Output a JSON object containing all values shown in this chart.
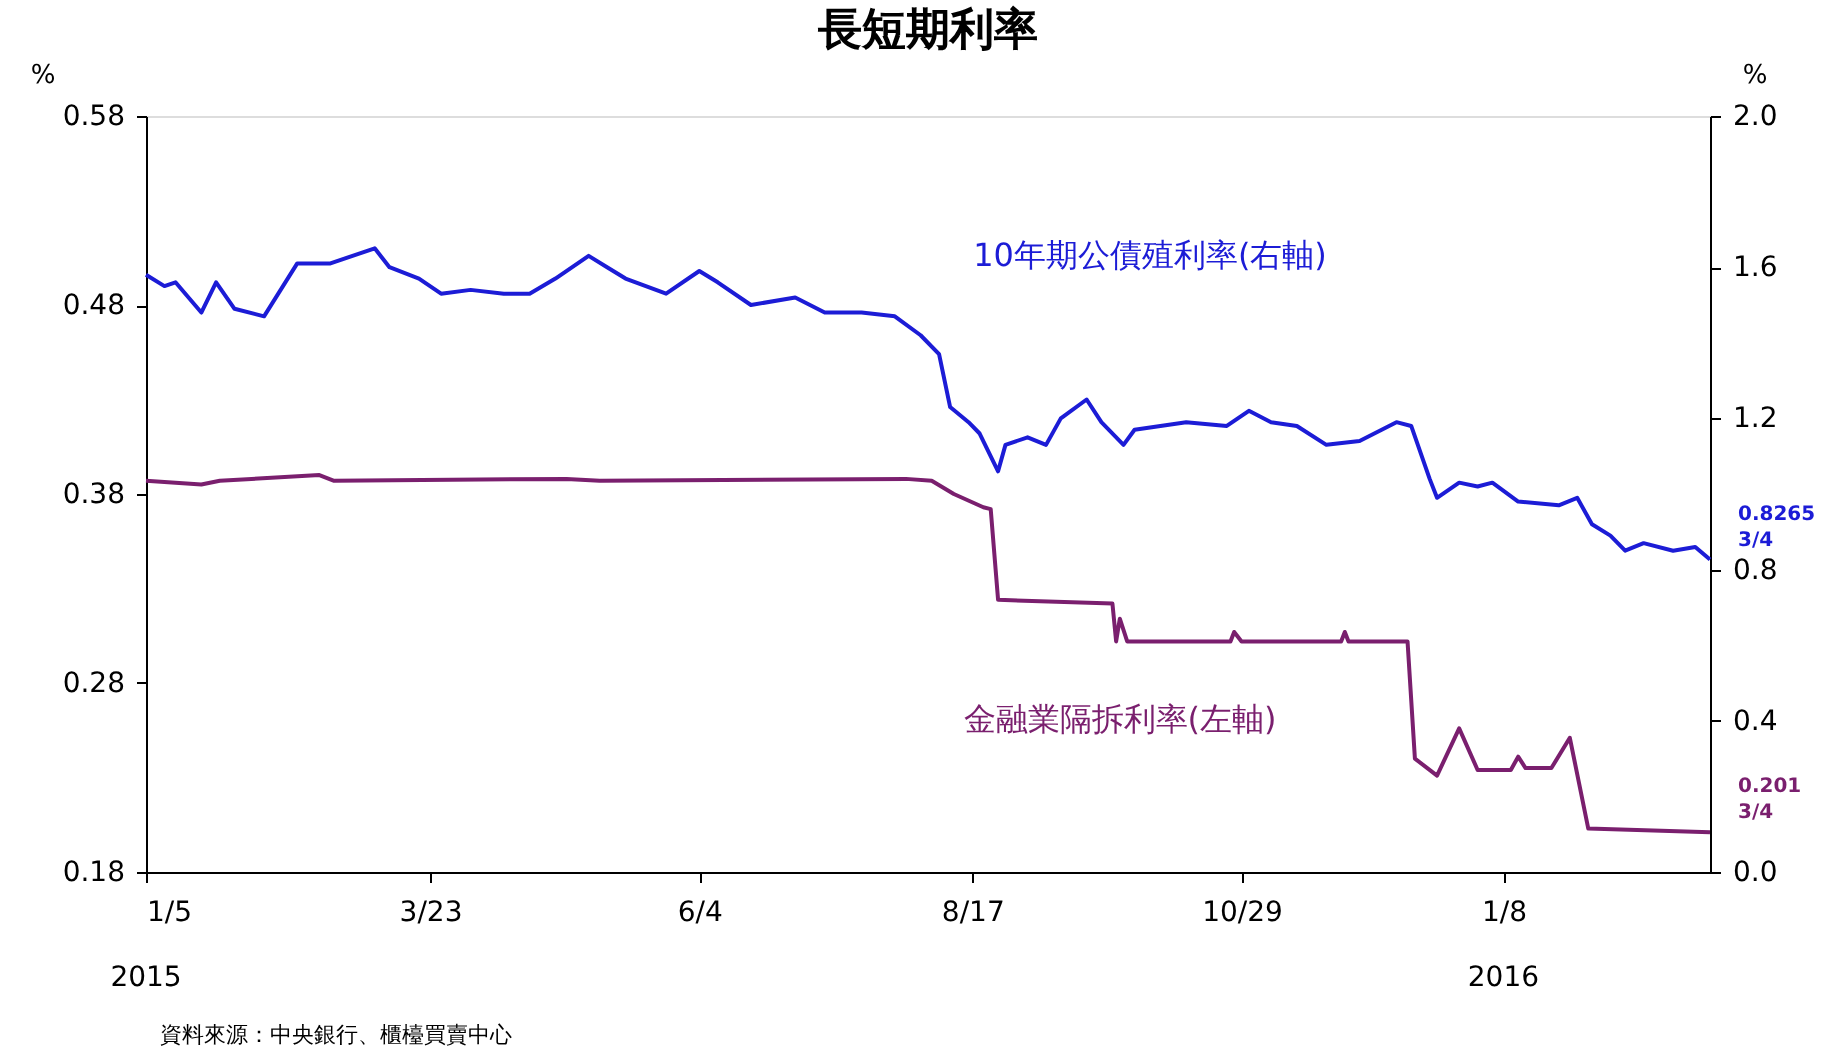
{
  "chart_data": {
    "type": "line",
    "title": "長短期利率",
    "ylabel": "%",
    "y2label": "%",
    "xlim": [
      "2015-01-05",
      "2016-03-04"
    ],
    "xticks": [
      {
        "value": "2015-01-05",
        "label": "1/5"
      },
      {
        "value": "2015-03-23",
        "label": "3/23"
      },
      {
        "value": "2015-06-04",
        "label": "6/4"
      },
      {
        "value": "2015-08-17",
        "label": "8/17"
      },
      {
        "value": "2015-10-29",
        "label": "10/29"
      },
      {
        "value": "2016-01-08",
        "label": "1/8"
      }
    ],
    "ylim": [
      0.18,
      0.58
    ],
    "yticks": [
      0.18,
      0.28,
      0.38,
      0.48,
      0.58
    ],
    "y2lim": [
      0,
      2.0
    ],
    "y2ticks": [
      {
        "value": 0,
        "label": "0.0"
      },
      0.4,
      0.8,
      1.2,
      1.6,
      {
        "value": 2.0,
        "label": "2.0"
      }
    ],
    "series": [
      {
        "name": "10年期公債殖利率(右軸)",
        "color": "#1c1cd6",
        "axis": "y2",
        "x": [
          "2015-01-05",
          "2015-01-10",
          "2015-01-13",
          "2015-01-20",
          "2015-01-24",
          "2015-01-29",
          "2015-02-06",
          "2015-02-15",
          "2015-02-24",
          "2015-03-08",
          "2015-03-12",
          "2015-03-20",
          "2015-03-26",
          "2015-04-03",
          "2015-04-12",
          "2015-04-19",
          "2015-04-26",
          "2015-05-05",
          "2015-05-10",
          "2015-05-15",
          "2015-05-26",
          "2015-06-04",
          "2015-06-09",
          "2015-06-18",
          "2015-06-30",
          "2015-07-08",
          "2015-07-18",
          "2015-07-27",
          "2015-08-03",
          "2015-08-08",
          "2015-08-11",
          "2015-08-16",
          "2015-08-19",
          "2015-08-24",
          "2015-08-26",
          "2015-09-01",
          "2015-09-06",
          "2015-09-10",
          "2015-09-17",
          "2015-09-21",
          "2015-09-27",
          "2015-09-30",
          "2015-10-14",
          "2015-10-25",
          "2015-10-31",
          "2015-11-06",
          "2015-11-13",
          "2015-11-21",
          "2015-11-30",
          "2015-12-04",
          "2015-12-10",
          "2015-12-14",
          "2015-12-19",
          "2015-12-21",
          "2015-12-27",
          "2016-01-01",
          "2016-01-05",
          "2016-01-12",
          "2016-01-23",
          "2016-01-28",
          "2016-02-01",
          "2016-02-06",
          "2016-02-10",
          "2016-02-15",
          "2016-02-23",
          "2016-02-29",
          "2016-03-04"
        ],
        "values": [
          1.58,
          1.55,
          1.56,
          1.48,
          1.56,
          1.49,
          1.47,
          1.61,
          1.61,
          1.65,
          1.6,
          1.57,
          1.53,
          1.54,
          1.53,
          1.53,
          1.57,
          1.63,
          1.6,
          1.57,
          1.53,
          1.59,
          1.56,
          1.5,
          1.52,
          1.48,
          1.48,
          1.47,
          1.42,
          1.37,
          1.23,
          1.19,
          1.16,
          1.06,
          1.13,
          1.15,
          1.13,
          1.2,
          1.25,
          1.19,
          1.13,
          1.17,
          1.19,
          1.18,
          1.22,
          1.19,
          1.18,
          1.13,
          1.14,
          1.16,
          1.19,
          1.18,
          1.04,
          0.99,
          1.03,
          1.02,
          1.03,
          0.98,
          0.97,
          0.99,
          0.92,
          0.89,
          0.85,
          0.87,
          0.85,
          0.86,
          0.8265
        ],
        "value_labels": [
          null,
          null,
          null,
          null,
          null,
          null,
          null,
          null,
          null,
          null,
          null,
          null,
          null,
          null,
          null,
          null,
          null,
          null,
          null,
          null,
          null,
          null,
          null,
          null,
          null,
          null,
          null,
          null,
          null,
          null,
          null,
          null,
          null,
          null,
          null,
          null,
          null,
          null,
          null,
          null,
          null,
          null,
          null,
          null,
          null,
          null,
          null,
          null,
          null,
          null,
          null,
          null,
          null,
          null,
          null,
          null,
          null,
          null,
          null,
          null,
          null,
          null,
          null,
          null,
          null,
          null,
          "0.8265\n3/4"
        ]
      },
      {
        "name": "金融業隔拆利率(左軸)",
        "color": "#7a1f6e",
        "x": [
          "2015-01-05",
          "2015-01-20",
          "2015-01-25",
          "2015-02-21",
          "2015-02-25",
          "2015-04-29",
          "2015-05-08",
          "2015-07-30",
          "2015-08-06",
          "2015-08-12",
          "2015-08-20",
          "2015-08-22",
          "2015-08-24",
          "2015-09-24",
          "2015-09-25",
          "2015-09-26",
          "2015-09-28",
          "2015-10-26",
          "2015-10-27",
          "2015-10-29",
          "2015-11-25",
          "2015-11-26",
          "2015-11-27",
          "2015-12-13",
          "2015-12-15",
          "2015-12-21",
          "2015-12-27",
          "2016-01-01",
          "2016-01-10",
          "2016-01-12",
          "2016-01-14",
          "2016-01-21",
          "2016-01-26",
          "2016-01-31",
          "2016-03-04"
        ],
        "values": [
          0.387,
          0.385,
          0.387,
          0.39,
          0.387,
          0.388,
          0.387,
          0.388,
          0.387,
          0.38,
          0.373,
          0.372,
          0.324,
          0.322,
          0.302,
          0.314,
          0.302,
          0.302,
          0.307,
          0.302,
          0.302,
          0.307,
          0.302,
          0.302,
          0.24,
          0.231,
          0.256,
          0.234,
          0.234,
          0.241,
          0.235,
          0.235,
          0.251,
          0.203,
          0.201
        ],
        "value_labels": [
          null,
          null,
          null,
          null,
          null,
          null,
          null,
          null,
          null,
          null,
          null,
          null,
          null,
          null,
          null,
          null,
          null,
          null,
          null,
          null,
          null,
          null,
          null,
          null,
          null,
          null,
          null,
          null,
          null,
          null,
          null,
          null,
          null,
          null,
          "0.201\n3/4"
        ]
      }
    ],
    "annotations": [
      "2015",
      "2016",
      "資料來源：中央銀行、櫃檯買賣中心"
    ]
  }
}
